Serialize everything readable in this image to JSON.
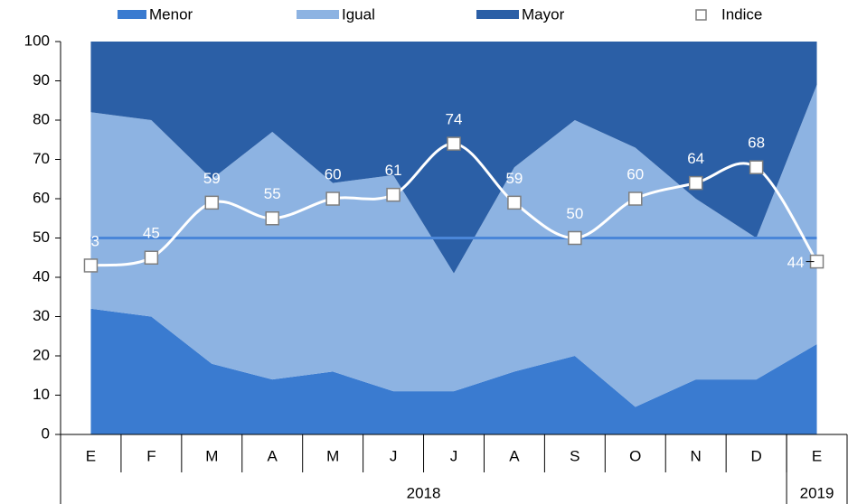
{
  "chart_data": {
    "type": "stacked_area_line",
    "categories": [
      "E",
      "F",
      "M",
      "A",
      "M",
      "J",
      "J",
      "A",
      "S",
      "O",
      "N",
      "D",
      "E"
    ],
    "groups": [
      {
        "label": "2018",
        "span": 12
      },
      {
        "label": "2019",
        "span": 1
      }
    ],
    "series": [
      {
        "name": "Menor",
        "color": "#3a7bd0",
        "values": [
          32,
          30,
          18,
          14,
          16,
          11,
          11,
          16,
          20,
          7,
          14,
          14,
          23
        ]
      },
      {
        "name": "Igual",
        "color": "#8db3e2",
        "values": [
          50,
          50,
          47,
          63,
          48,
          55,
          30,
          52,
          60,
          66,
          46,
          36,
          66
        ]
      },
      {
        "name": "Mayor",
        "color": "#2b5fa6",
        "values": [
          18,
          20,
          35,
          23,
          36,
          34,
          59,
          32,
          20,
          27,
          40,
          50,
          11
        ]
      }
    ],
    "index": {
      "name": "Indice",
      "color": "#ffffff",
      "values": [
        43,
        45,
        59,
        55,
        60,
        61,
        74,
        59,
        50,
        60,
        64,
        68,
        44
      ]
    },
    "reference_value": 50,
    "reference_color": "#4a86d8",
    "ylim": [
      0,
      100
    ],
    "yticks": [
      0,
      10,
      20,
      30,
      40,
      50,
      60,
      70,
      80,
      90,
      100
    ]
  }
}
